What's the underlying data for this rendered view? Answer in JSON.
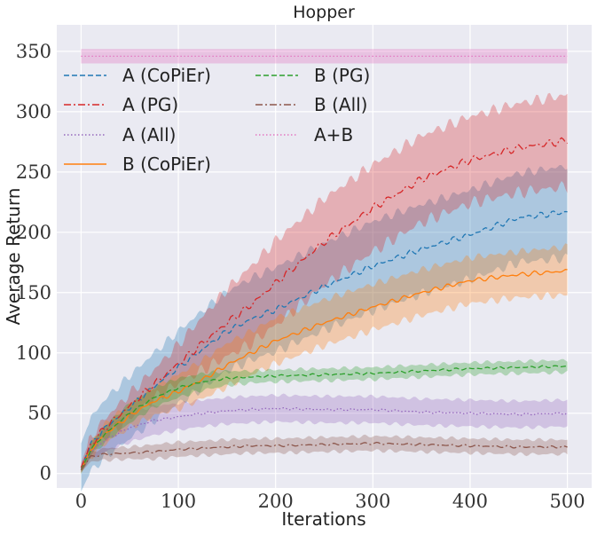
{
  "chart_data": {
    "type": "line",
    "title": "Hopper",
    "xlabel": "Iterations",
    "ylabel": "Average Return",
    "xlim": [
      -25,
      525
    ],
    "ylim": [
      -12,
      372
    ],
    "xticks": [
      0,
      100,
      200,
      300,
      400,
      500
    ],
    "yticks": [
      0,
      50,
      100,
      150,
      200,
      250,
      300,
      350
    ],
    "grid": true,
    "legend_location": "upper-left, two columns",
    "x_points": [
      0,
      10,
      25,
      50,
      75,
      100,
      125,
      150,
      175,
      200,
      250,
      300,
      350,
      400,
      450,
      500
    ],
    "series": [
      {
        "name": "A (CoPiEr)",
        "color": "#1f77b4",
        "linestyle": "dashed",
        "values": [
          5,
          24,
          38,
          55,
          72,
          88,
          103,
          118,
          128,
          136,
          155,
          172,
          186,
          198,
          212,
          217
        ],
        "band": [
          20,
          22,
          24,
          26,
          28,
          30,
          32,
          33,
          34,
          35,
          36,
          37,
          37,
          37,
          37,
          38
        ]
      },
      {
        "name": "A (PG)",
        "color": "#d62728",
        "linestyle": "dashdot",
        "values": [
          5,
          24,
          38,
          56,
          74,
          91,
          108,
          125,
          140,
          158,
          192,
          220,
          244,
          260,
          270,
          276
        ],
        "band": [
          4,
          6,
          8,
          10,
          12,
          16,
          22,
          28,
          32,
          35,
          36,
          36,
          36,
          36,
          37,
          38
        ]
      },
      {
        "name": "A (All)",
        "color": "#9467bd",
        "linestyle": "dotted",
        "values": [
          4,
          18,
          28,
          38,
          44,
          47,
          50,
          52,
          53,
          54,
          53,
          53,
          51,
          50,
          49,
          50
        ],
        "band": [
          3,
          6,
          10,
          12,
          12,
          11,
          11,
          11,
          11,
          11,
          11,
          11,
          11,
          11,
          11,
          11
        ]
      },
      {
        "name": "B (CoPiEr)",
        "color": "#ff7f0e",
        "linestyle": "solid",
        "values": [
          3,
          20,
          33,
          48,
          60,
          68,
          78,
          90,
          100,
          110,
          125,
          138,
          150,
          160,
          165,
          168
        ],
        "band": [
          3,
          6,
          8,
          10,
          12,
          14,
          16,
          18,
          18,
          19,
          19,
          19,
          19,
          19,
          19,
          20
        ]
      },
      {
        "name": "B (PG)",
        "color": "#2ca02c",
        "linestyle": "dashed",
        "values": [
          3,
          20,
          33,
          50,
          63,
          71,
          76,
          79,
          80,
          81,
          82,
          83,
          85,
          87,
          88,
          89
        ],
        "band": [
          3,
          5,
          7,
          8,
          8,
          8,
          7,
          6,
          5,
          5,
          5,
          5,
          5,
          5,
          5,
          5
        ]
      },
      {
        "name": "B (All)",
        "color": "#8c564b",
        "linestyle": "dashdot",
        "values": [
          3,
          14,
          16,
          17,
          18,
          20,
          21,
          22,
          23,
          23,
          24,
          25,
          24,
          23,
          22,
          22
        ],
        "band": [
          2,
          4,
          5,
          5,
          6,
          6,
          6,
          6,
          6,
          6,
          6,
          6,
          6,
          6,
          6,
          6
        ]
      },
      {
        "name": "A+B",
        "color": "#e377c2",
        "linestyle": "dotted",
        "constant": 346,
        "constant_band": 6,
        "x_range": [
          0,
          500
        ]
      }
    ]
  }
}
